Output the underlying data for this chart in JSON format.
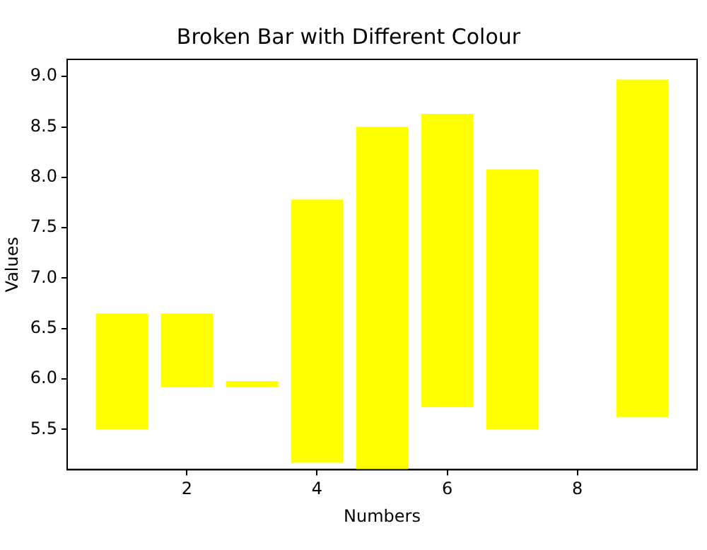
{
  "chart_data": {
    "type": "bar",
    "title": "Broken Bar with Different Colour",
    "xlabel": "Numbers",
    "ylabel": "Values",
    "x": [
      1,
      2,
      3,
      4,
      5,
      6,
      7,
      9
    ],
    "base": [
      5.5,
      5.92,
      5.92,
      5.17,
      5.1,
      5.72,
      5.5,
      5.62
    ],
    "values": [
      1.15,
      0.73,
      0.06,
      2.61,
      3.4,
      2.91,
      2.58,
      3.35
    ],
    "color": "#ffff00",
    "xlim": [
      0.16,
      9.84
    ],
    "xticks": [
      2,
      4,
      6,
      8
    ],
    "ylim": [
      5.1,
      9.17
    ],
    "yticks": [
      {
        "value": 5.5,
        "label": "5.5"
      },
      {
        "value": 6,
        "label": "6.0"
      },
      {
        "value": 6.5,
        "label": "6.5"
      },
      {
        "value": 7,
        "label": "7.0"
      },
      {
        "value": 7.5,
        "label": "7.5"
      },
      {
        "value": 8,
        "label": "8.0"
      },
      {
        "value": 8.5,
        "label": "8.5"
      },
      {
        "value": 9,
        "label": "9.0"
      }
    ],
    "grid": false,
    "legend": false
  }
}
